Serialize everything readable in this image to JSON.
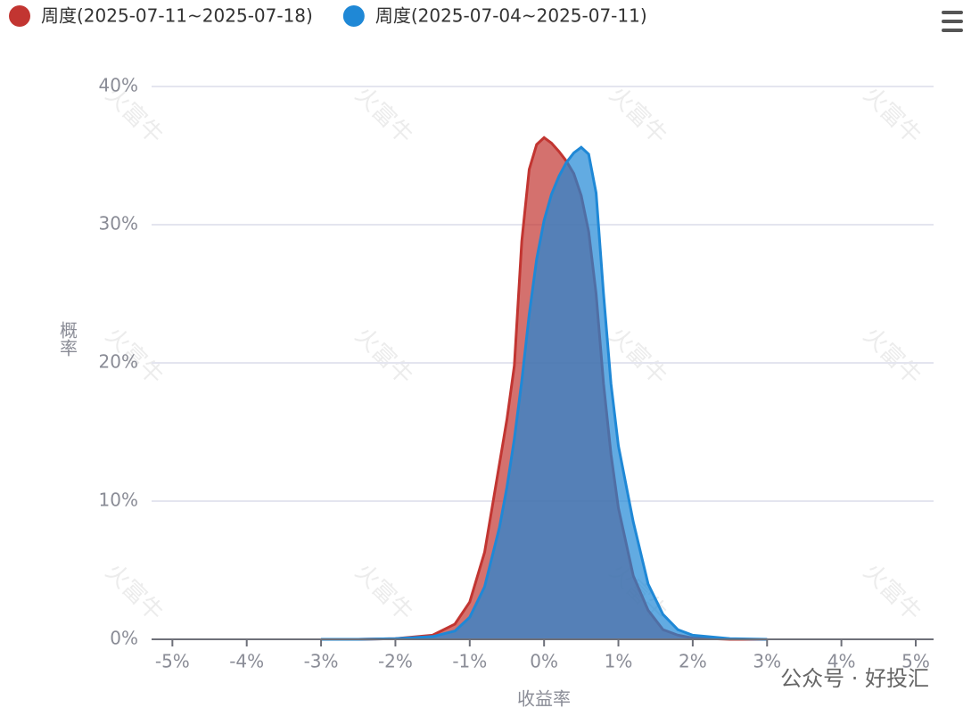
{
  "chart_data": {
    "type": "area",
    "y_label": "概率",
    "x_label": "收益率",
    "x": [
      -3,
      -2.5,
      -2,
      -1.5,
      -1.2,
      -1,
      -0.8,
      -0.6,
      -0.5,
      -0.4,
      -0.3,
      -0.2,
      -0.1,
      0,
      0.1,
      0.2,
      0.3,
      0.4,
      0.5,
      0.6,
      0.7,
      0.8,
      0.9,
      1,
      1.2,
      1.4,
      1.6,
      1.8,
      2,
      2.5,
      3
    ],
    "series": [
      {
        "name": "周度(2025-07-11~2025-07-18)",
        "color": "#c23531",
        "values": [
          0,
          0,
          0.05,
          0.3,
          1.1,
          2.7,
          6.3,
          12.7,
          15.9,
          19.8,
          28.8,
          34,
          35.8,
          36.3,
          35.9,
          35.3,
          34.6,
          33.7,
          32.1,
          29.5,
          25,
          18.5,
          13.4,
          9.5,
          4.6,
          2.1,
          0.7,
          0.3,
          0.1,
          0,
          0
        ]
      },
      {
        "name": "周度(2025-07-04~2025-07-11)",
        "color": "#1f88d6",
        "values": [
          0,
          0,
          0.05,
          0.2,
          0.6,
          1.6,
          3.8,
          8.1,
          11,
          14.5,
          18.7,
          23.5,
          27.5,
          30.3,
          32.2,
          33.5,
          34.5,
          35.2,
          35.6,
          35.1,
          32.3,
          25,
          18.5,
          14,
          8.5,
          4,
          1.8,
          0.7,
          0.3,
          0.05,
          0
        ]
      }
    ],
    "xlim": [
      -5.28,
      5.24
    ],
    "xticks": [
      {
        "value": -5,
        "label": "-5%"
      },
      {
        "value": -4,
        "label": "-4%"
      },
      {
        "value": -3,
        "label": "-3%"
      },
      {
        "value": -2,
        "label": "-2%"
      },
      {
        "value": -1,
        "label": "-1%"
      },
      {
        "value": 0,
        "label": "0%"
      },
      {
        "value": 1,
        "label": "1%"
      },
      {
        "value": 2,
        "label": "2%"
      },
      {
        "value": 3,
        "label": "3%"
      },
      {
        "value": 4,
        "label": "4%"
      },
      {
        "value": 5,
        "label": "5%"
      }
    ],
    "ylim": [
      0,
      40
    ],
    "yticks": [
      {
        "value": 0,
        "label": "0%"
      },
      {
        "value": 10,
        "label": "10%"
      },
      {
        "value": 20,
        "label": "20%"
      },
      {
        "value": 30,
        "label": "30%"
      },
      {
        "value": 40,
        "label": "40%"
      }
    ],
    "grid": true,
    "legend": "top-left"
  },
  "watermark": "火富牛",
  "overlay_caption": "公众号 · 好投汇"
}
